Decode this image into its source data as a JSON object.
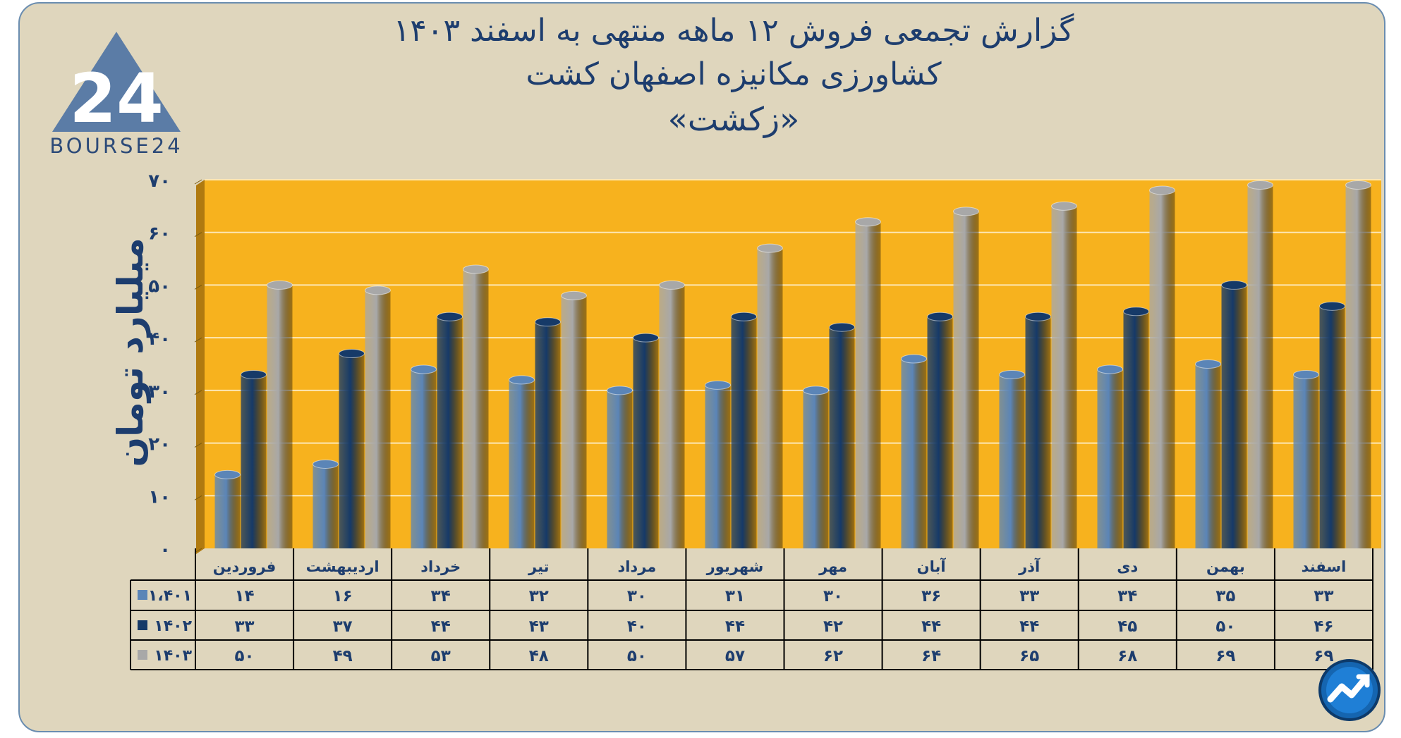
{
  "header": {
    "title_line1": "گزارش تجمعی فروش ۱۲ ماهه منتهی به اسفند ۱۴۰۳",
    "title_line2": "کشاورزی مکانیزه اصفهان کشت",
    "title_line3": "«زکشت»"
  },
  "logo": {
    "text": "BOURSE24",
    "icon": "bourse24-logo-icon"
  },
  "badge": {
    "icon": "trend-arrow-icon"
  },
  "chart_data": {
    "type": "bar",
    "ylabel": "میلیارد تومان",
    "ylim": [
      0,
      70
    ],
    "yticks": [
      "۰",
      "۱۰",
      "۲۰",
      "۳۰",
      "۴۰",
      "۵۰",
      "۶۰",
      "۷۰"
    ],
    "categories": [
      "فروردین",
      "اردیبهشت",
      "خرداد",
      "تیر",
      "مرداد",
      "شهریور",
      "مهر",
      "آبان",
      "آذر",
      "دی",
      "بهمن",
      "اسفند"
    ],
    "series": [
      {
        "name": "۱،۴۰۱",
        "color": "#5b85b7",
        "values": [
          14,
          16,
          34,
          32,
          30,
          31,
          30,
          36,
          33,
          34,
          35,
          33
        ],
        "labels": [
          "۱۴",
          "۱۶",
          "۳۴",
          "۳۲",
          "۳۰",
          "۳۱",
          "۳۰",
          "۳۶",
          "۳۳",
          "۳۴",
          "۳۵",
          "۳۳"
        ]
      },
      {
        "name": "۱۴۰۲",
        "color": "#163a68",
        "values": [
          33,
          37,
          44,
          43,
          40,
          44,
          42,
          44,
          44,
          45,
          50,
          46
        ],
        "labels": [
          "۳۳",
          "۳۷",
          "۴۴",
          "۴۳",
          "۴۰",
          "۴۴",
          "۴۲",
          "۴۴",
          "۴۴",
          "۴۵",
          "۵۰",
          "۴۶"
        ]
      },
      {
        "name": "۱۴۰۳",
        "color": "#a8a8a8",
        "values": [
          50,
          49,
          53,
          48,
          50,
          57,
          62,
          64,
          65,
          68,
          69,
          69
        ],
        "labels": [
          "۵۰",
          "۴۹",
          "۵۳",
          "۴۸",
          "۵۰",
          "۵۷",
          "۶۲",
          "۶۴",
          "۶۵",
          "۶۸",
          "۶۹",
          "۶۹"
        ]
      }
    ],
    "plot_background": "#f7b21e",
    "grid": true,
    "legend": "table-left"
  }
}
